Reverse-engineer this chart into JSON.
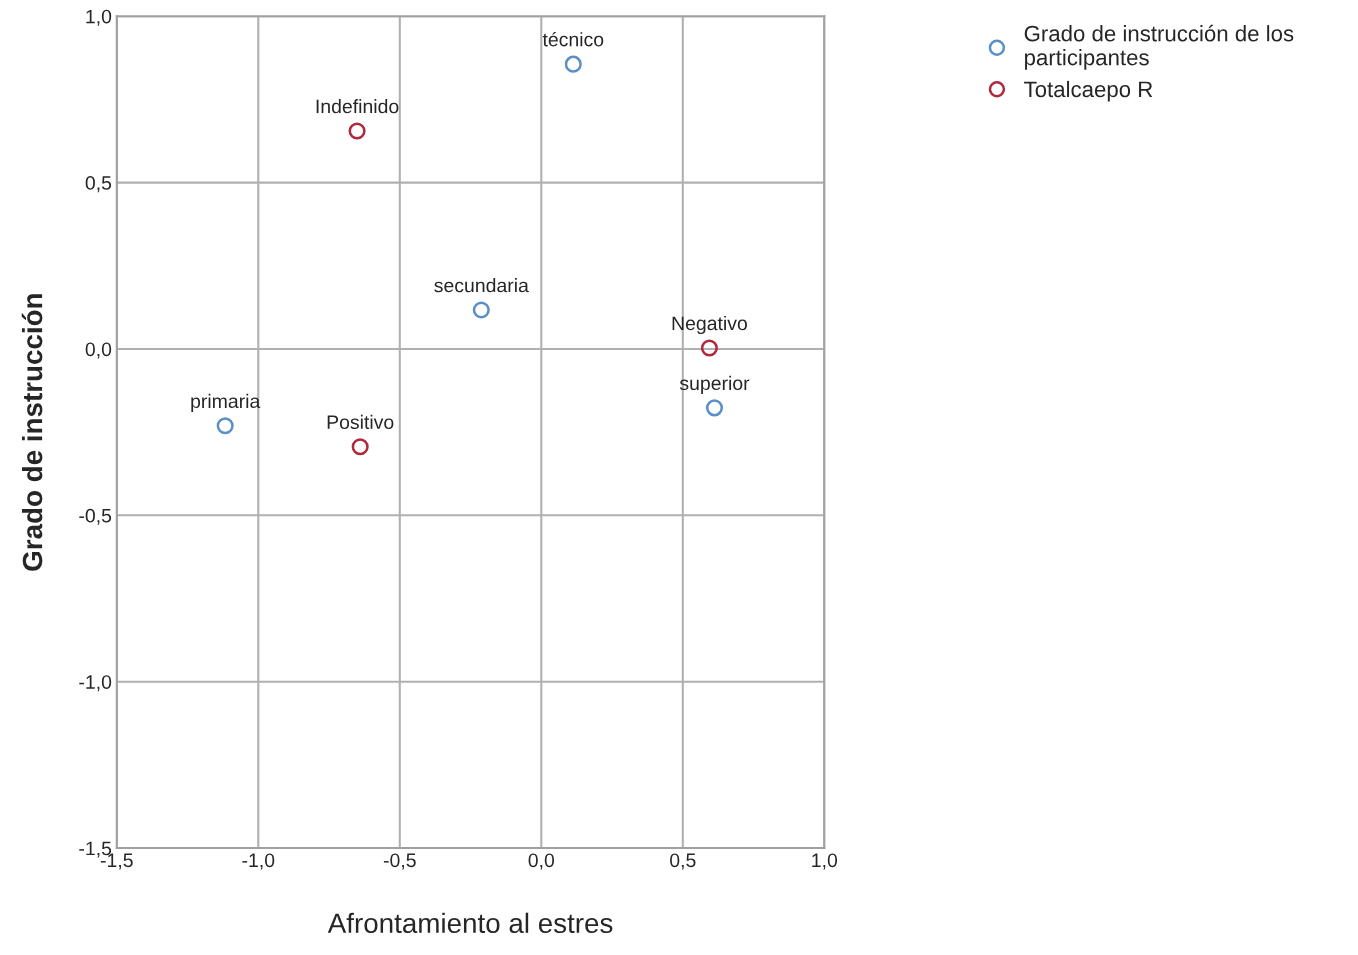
{
  "chart_data": {
    "type": "scatter",
    "xlabel": "Afrontamiento al estres",
    "ylabel": "Grado de instrucción",
    "series": [
      {
        "name": "Grado de instrucción de los participantes",
        "color": "#5b8fc7",
        "x": [
          0.113,
          -0.212,
          0.612,
          -1.117
        ],
        "values": [
          0.856,
          0.117,
          -0.177,
          -0.231
        ]
      },
      {
        "name": "Totalcaepo R",
        "color": "#b0283c",
        "x": [
          -0.651,
          0.594,
          -0.64
        ],
        "values": [
          0.655,
          0.003,
          -0.294
        ]
      }
    ],
    "annotations": [
      {
        "text": "técnico",
        "x": 0.113,
        "y": 0.856
      },
      {
        "text": "secundaria",
        "x": -0.212,
        "y": 0.117
      },
      {
        "text": "superior",
        "x": 0.612,
        "y": -0.177
      },
      {
        "text": "primaria",
        "x": -1.117,
        "y": -0.231
      },
      {
        "text": "Indefinido",
        "x": -0.651,
        "y": 0.655
      },
      {
        "text": "Negativo",
        "x": 0.594,
        "y": 0.003
      },
      {
        "text": "Positivo",
        "x": -0.64,
        "y": -0.294
      }
    ],
    "xlim": [
      -1.5,
      1.0
    ],
    "ylim": [
      -1.5,
      1.0
    ],
    "xticks": [
      {
        "value": -1.5,
        "label": "-1,5"
      },
      {
        "value": -1.0,
        "label": "-1,0"
      },
      {
        "value": -0.5,
        "label": "-0,5"
      },
      {
        "value": 0.0,
        "label": "0,0"
      },
      {
        "value": 0.5,
        "label": "0,5"
      },
      {
        "value": 1.0,
        "label": "1,0"
      }
    ],
    "yticks": [
      {
        "value": -1.5,
        "label": "-1,5"
      },
      {
        "value": -1.0,
        "label": "-1,0"
      },
      {
        "value": -0.5,
        "label": "-0,5"
      },
      {
        "value": 0.0,
        "label": "0,0"
      },
      {
        "value": 0.5,
        "label": "0,5"
      },
      {
        "value": 1.0,
        "label": "1,0"
      }
    ],
    "grid": true,
    "legend": "top right",
    "marker": "circle"
  }
}
